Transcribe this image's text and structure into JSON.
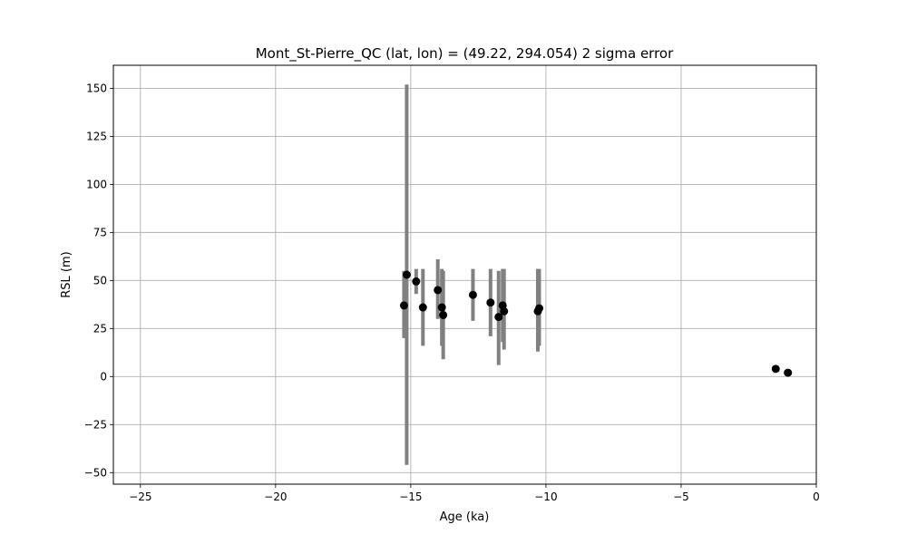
{
  "chart_data": {
    "type": "scatter",
    "title": "Mont_St-Pierre_QC (lat, lon) = (49.22, 294.054)  2 sigma error",
    "xlabel": "Age (ka)",
    "ylabel": "RSL (m)",
    "xlim": [
      -26,
      0
    ],
    "ylim": [
      -56,
      162
    ],
    "xticks": [
      -25,
      -20,
      -15,
      -10,
      -5,
      0
    ],
    "yticks": [
      -50,
      -25,
      0,
      25,
      50,
      75,
      100,
      125,
      150
    ],
    "grid": true,
    "colors": {
      "point": "#000000",
      "errorbar": "#808080",
      "grid": "#b0b0b0"
    },
    "points": [
      {
        "x": -15.25,
        "y": 37,
        "ylow": 20,
        "yhigh": 55
      },
      {
        "x": -15.15,
        "y": 53,
        "ylow": -46,
        "yhigh": 152
      },
      {
        "x": -14.8,
        "y": 49.5,
        "ylow": 43,
        "yhigh": 56
      },
      {
        "x": -14.55,
        "y": 36,
        "ylow": 16,
        "yhigh": 56
      },
      {
        "x": -14.0,
        "y": 45,
        "ylow": 30,
        "yhigh": 61
      },
      {
        "x": -13.85,
        "y": 36,
        "ylow": 16,
        "yhigh": 56
      },
      {
        "x": -13.8,
        "y": 32,
        "ylow": 9,
        "yhigh": 55
      },
      {
        "x": -12.7,
        "y": 42.5,
        "ylow": 29,
        "yhigh": 56
      },
      {
        "x": -12.05,
        "y": 38.5,
        "ylow": 21,
        "yhigh": 56
      },
      {
        "x": -11.75,
        "y": 31,
        "ylow": 6,
        "yhigh": 55
      },
      {
        "x": -11.6,
        "y": 37,
        "ylow": 18,
        "yhigh": 56
      },
      {
        "x": -11.55,
        "y": 34,
        "ylow": 14,
        "yhigh": 56
      },
      {
        "x": -10.3,
        "y": 34,
        "ylow": 13,
        "yhigh": 56
      },
      {
        "x": -10.25,
        "y": 35.5,
        "ylow": 16,
        "yhigh": 56
      },
      {
        "x": -1.5,
        "y": 4,
        "ylow": 3.5,
        "yhigh": 4.5
      },
      {
        "x": -1.05,
        "y": 2,
        "ylow": 1.5,
        "yhigh": 2.5
      }
    ]
  }
}
